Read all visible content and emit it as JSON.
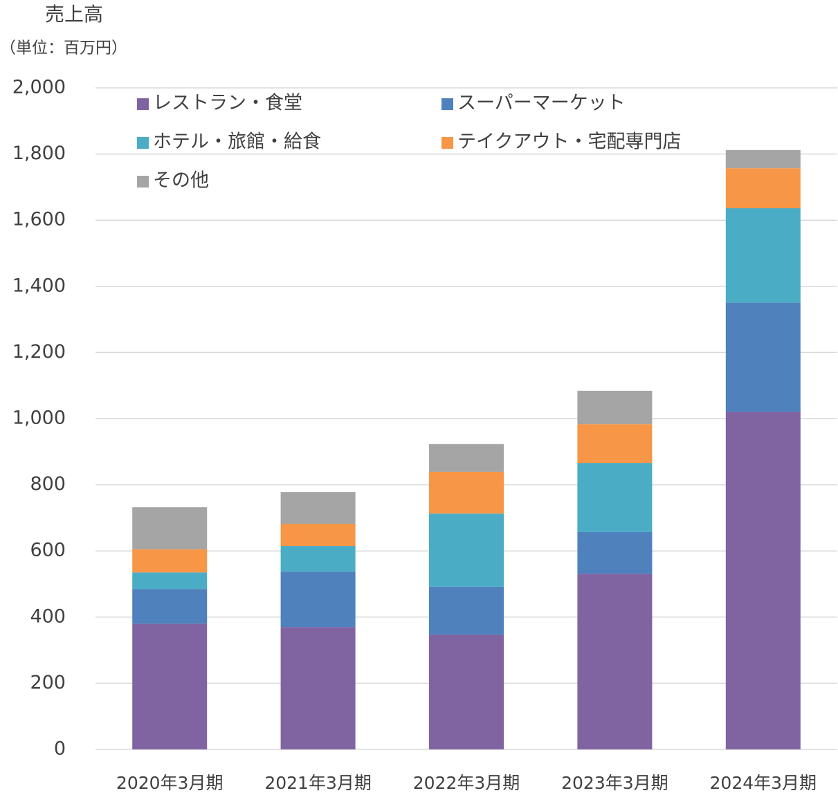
{
  "chart_data": {
    "type": "stacked-bar",
    "title": "売上高",
    "subtitle": "（単位：百万円）",
    "categories": [
      "2020年3月期",
      "2021年3月期",
      "2022年3月期",
      "2023年3月期",
      "2024年3月期"
    ],
    "series": [
      {
        "name": "レストラン・食堂",
        "color": "#8064a2",
        "values": [
          380,
          370,
          347,
          531,
          1021
        ]
      },
      {
        "name": "スーパーマーケット",
        "color": "#4f81bd",
        "values": [
          105,
          168,
          145,
          126,
          330
        ]
      },
      {
        "name": "ホテル・旅館・給食",
        "color": "#4bacc6",
        "values": [
          50,
          77,
          221,
          209,
          285
        ]
      },
      {
        "name": "テイクアウト・宅配専門店",
        "color": "#f79646",
        "values": [
          70,
          67,
          126,
          117,
          121
        ]
      },
      {
        "name": "その他",
        "color": "#a5a5a5",
        "values": [
          127,
          96,
          84,
          101,
          55
        ]
      }
    ],
    "ylim": [
      0,
      2000
    ],
    "yticks": [
      0,
      200,
      400,
      600,
      800,
      {
        "value": 1000,
        "label": "1,000"
      },
      {
        "value": 1200,
        "label": "1,200"
      },
      {
        "value": 1400,
        "label": "1,400"
      },
      {
        "value": 1600,
        "label": "1,600"
      },
      {
        "value": 1800,
        "label": "1,800"
      },
      {
        "value": 2000,
        "label": "2,000"
      }
    ],
    "grid": true
  }
}
